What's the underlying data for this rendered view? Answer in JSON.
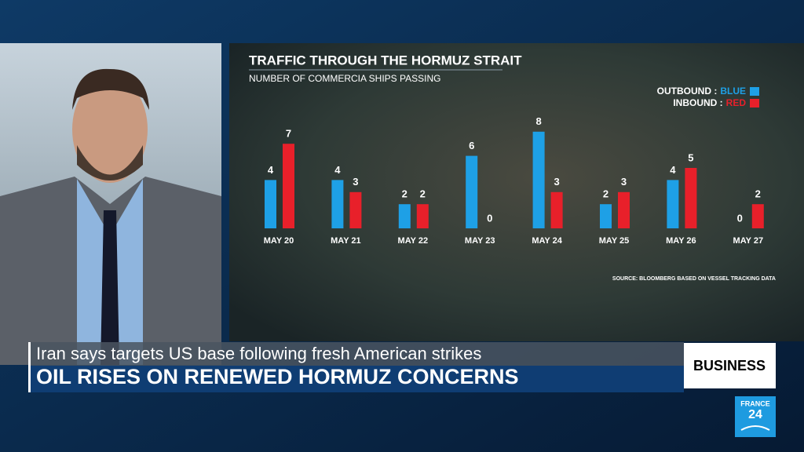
{
  "chart_data": {
    "type": "bar",
    "title": "TRAFFIC THROUGH THE HORMUZ STRAIT",
    "subtitle": "NUMBER OF COMMERCIA SHIPS PASSING",
    "categories": [
      "MAY 20",
      "MAY 21",
      "MAY 22",
      "MAY 23",
      "MAY 24",
      "MAY 25",
      "MAY 26",
      "MAY 27"
    ],
    "series": [
      {
        "name": "OUTBOUND :",
        "color_label": "BLUE",
        "color": "#1ea0e6",
        "values": [
          4,
          4,
          2,
          6,
          8,
          2,
          4,
          0
        ]
      },
      {
        "name": "INBOUND :",
        "color_label": "RED",
        "color": "#e8202a",
        "values": [
          7,
          3,
          2,
          0,
          3,
          3,
          5,
          2
        ]
      }
    ],
    "source": "SOURCE: BLOOMBERG BASED ON VESSEL TRACKING DATA"
  },
  "ticker": {
    "headline": "Iran says targets US base following fresh American strikes",
    "banner": "OIL RISES ON RENEWED HORMUZ CONCERNS",
    "section": "BUSINESS"
  },
  "logo": {
    "line1": "FRANCE",
    "line2": "24"
  }
}
